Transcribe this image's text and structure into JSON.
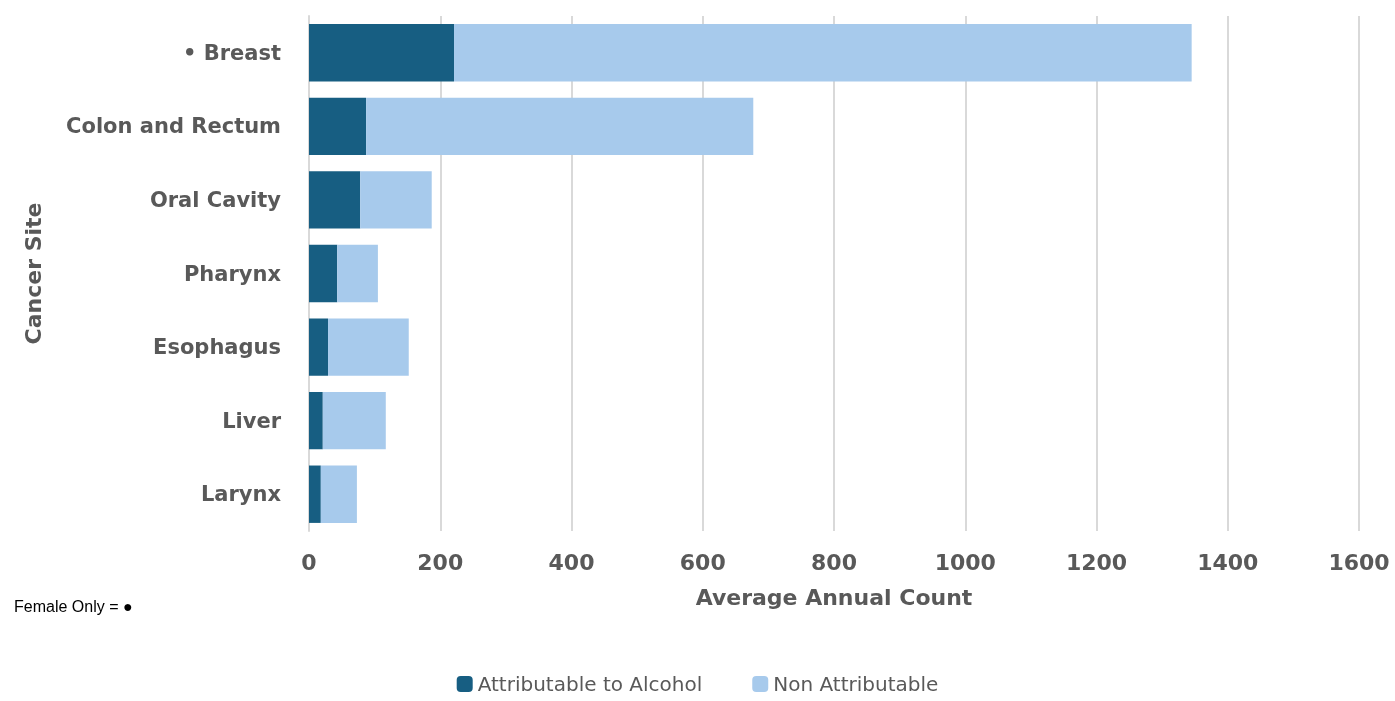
{
  "chart_data": {
    "type": "bar",
    "orientation": "horizontal",
    "stacked": true,
    "categories": [
      "• Breast",
      "Colon and Rectum",
      "Oral Cavity",
      "Pharynx",
      "Esophagus",
      "Liver",
      "Larynx"
    ],
    "series": [
      {
        "name": "Attributable to Alcohol",
        "color": "#175e82",
        "values": [
          221,
          87,
          78,
          43,
          29,
          21,
          18
        ]
      },
      {
        "name": "Non Attributable",
        "color": "#a7caec",
        "values": [
          1124,
          590,
          109,
          62,
          123,
          96,
          55
        ]
      }
    ],
    "xlabel": "Average Annual Count",
    "ylabel": "Cancer Site",
    "xlim": [
      0,
      1600
    ],
    "xticks": [
      0,
      200,
      400,
      600,
      800,
      1000,
      1200,
      1400,
      1600
    ],
    "grid": "x",
    "legend": "bottom",
    "annotations": [
      "Female Only = ●"
    ]
  }
}
